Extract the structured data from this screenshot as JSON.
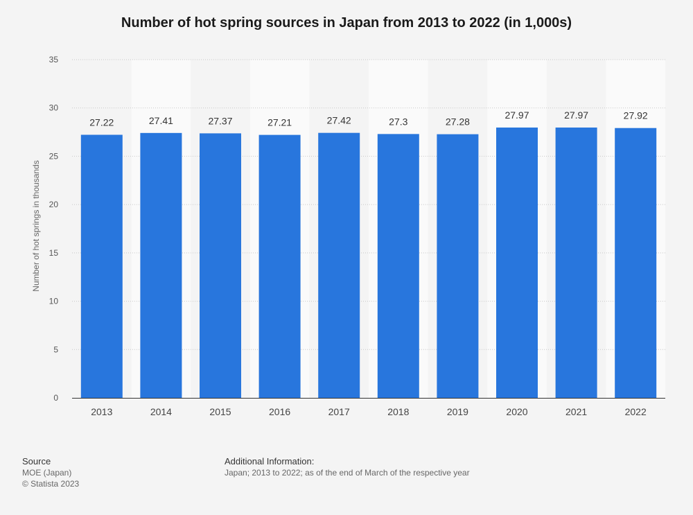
{
  "title": "Number of hot spring sources in Japan from 2013 to 2022 (in 1,000s)",
  "chart_data": {
    "type": "bar",
    "title": "Number of hot spring sources in Japan from 2013 to 2022 (in 1,000s)",
    "xlabel": "",
    "ylabel": "Number of hot springs in thousands",
    "categories": [
      "2013",
      "2014",
      "2015",
      "2016",
      "2017",
      "2018",
      "2019",
      "2020",
      "2021",
      "2022"
    ],
    "values": [
      27.22,
      27.41,
      27.37,
      27.21,
      27.42,
      27.3,
      27.28,
      27.97,
      27.97,
      27.92
    ],
    "data_labels": [
      "27.22",
      "27.41",
      "27.37",
      "27.21",
      "27.42",
      "27.3",
      "27.28",
      "27.97",
      "27.97",
      "27.92"
    ],
    "ylim": [
      0,
      35
    ],
    "yticks": [
      0,
      5,
      10,
      15,
      20,
      25,
      30,
      35
    ],
    "grid": true,
    "colors": {
      "bar": "#2876dd",
      "background": "#f4f4f4",
      "band": "#fafafa",
      "grid": "#c8c8c8",
      "axis": "#333333"
    }
  },
  "footer": {
    "source_heading": "Source",
    "source_lines": [
      "MOE (Japan)",
      "© Statista 2023"
    ],
    "info_heading": "Additional Information:",
    "info_text": "Japan; 2013 to 2022; as of the end of March of the respective year"
  }
}
